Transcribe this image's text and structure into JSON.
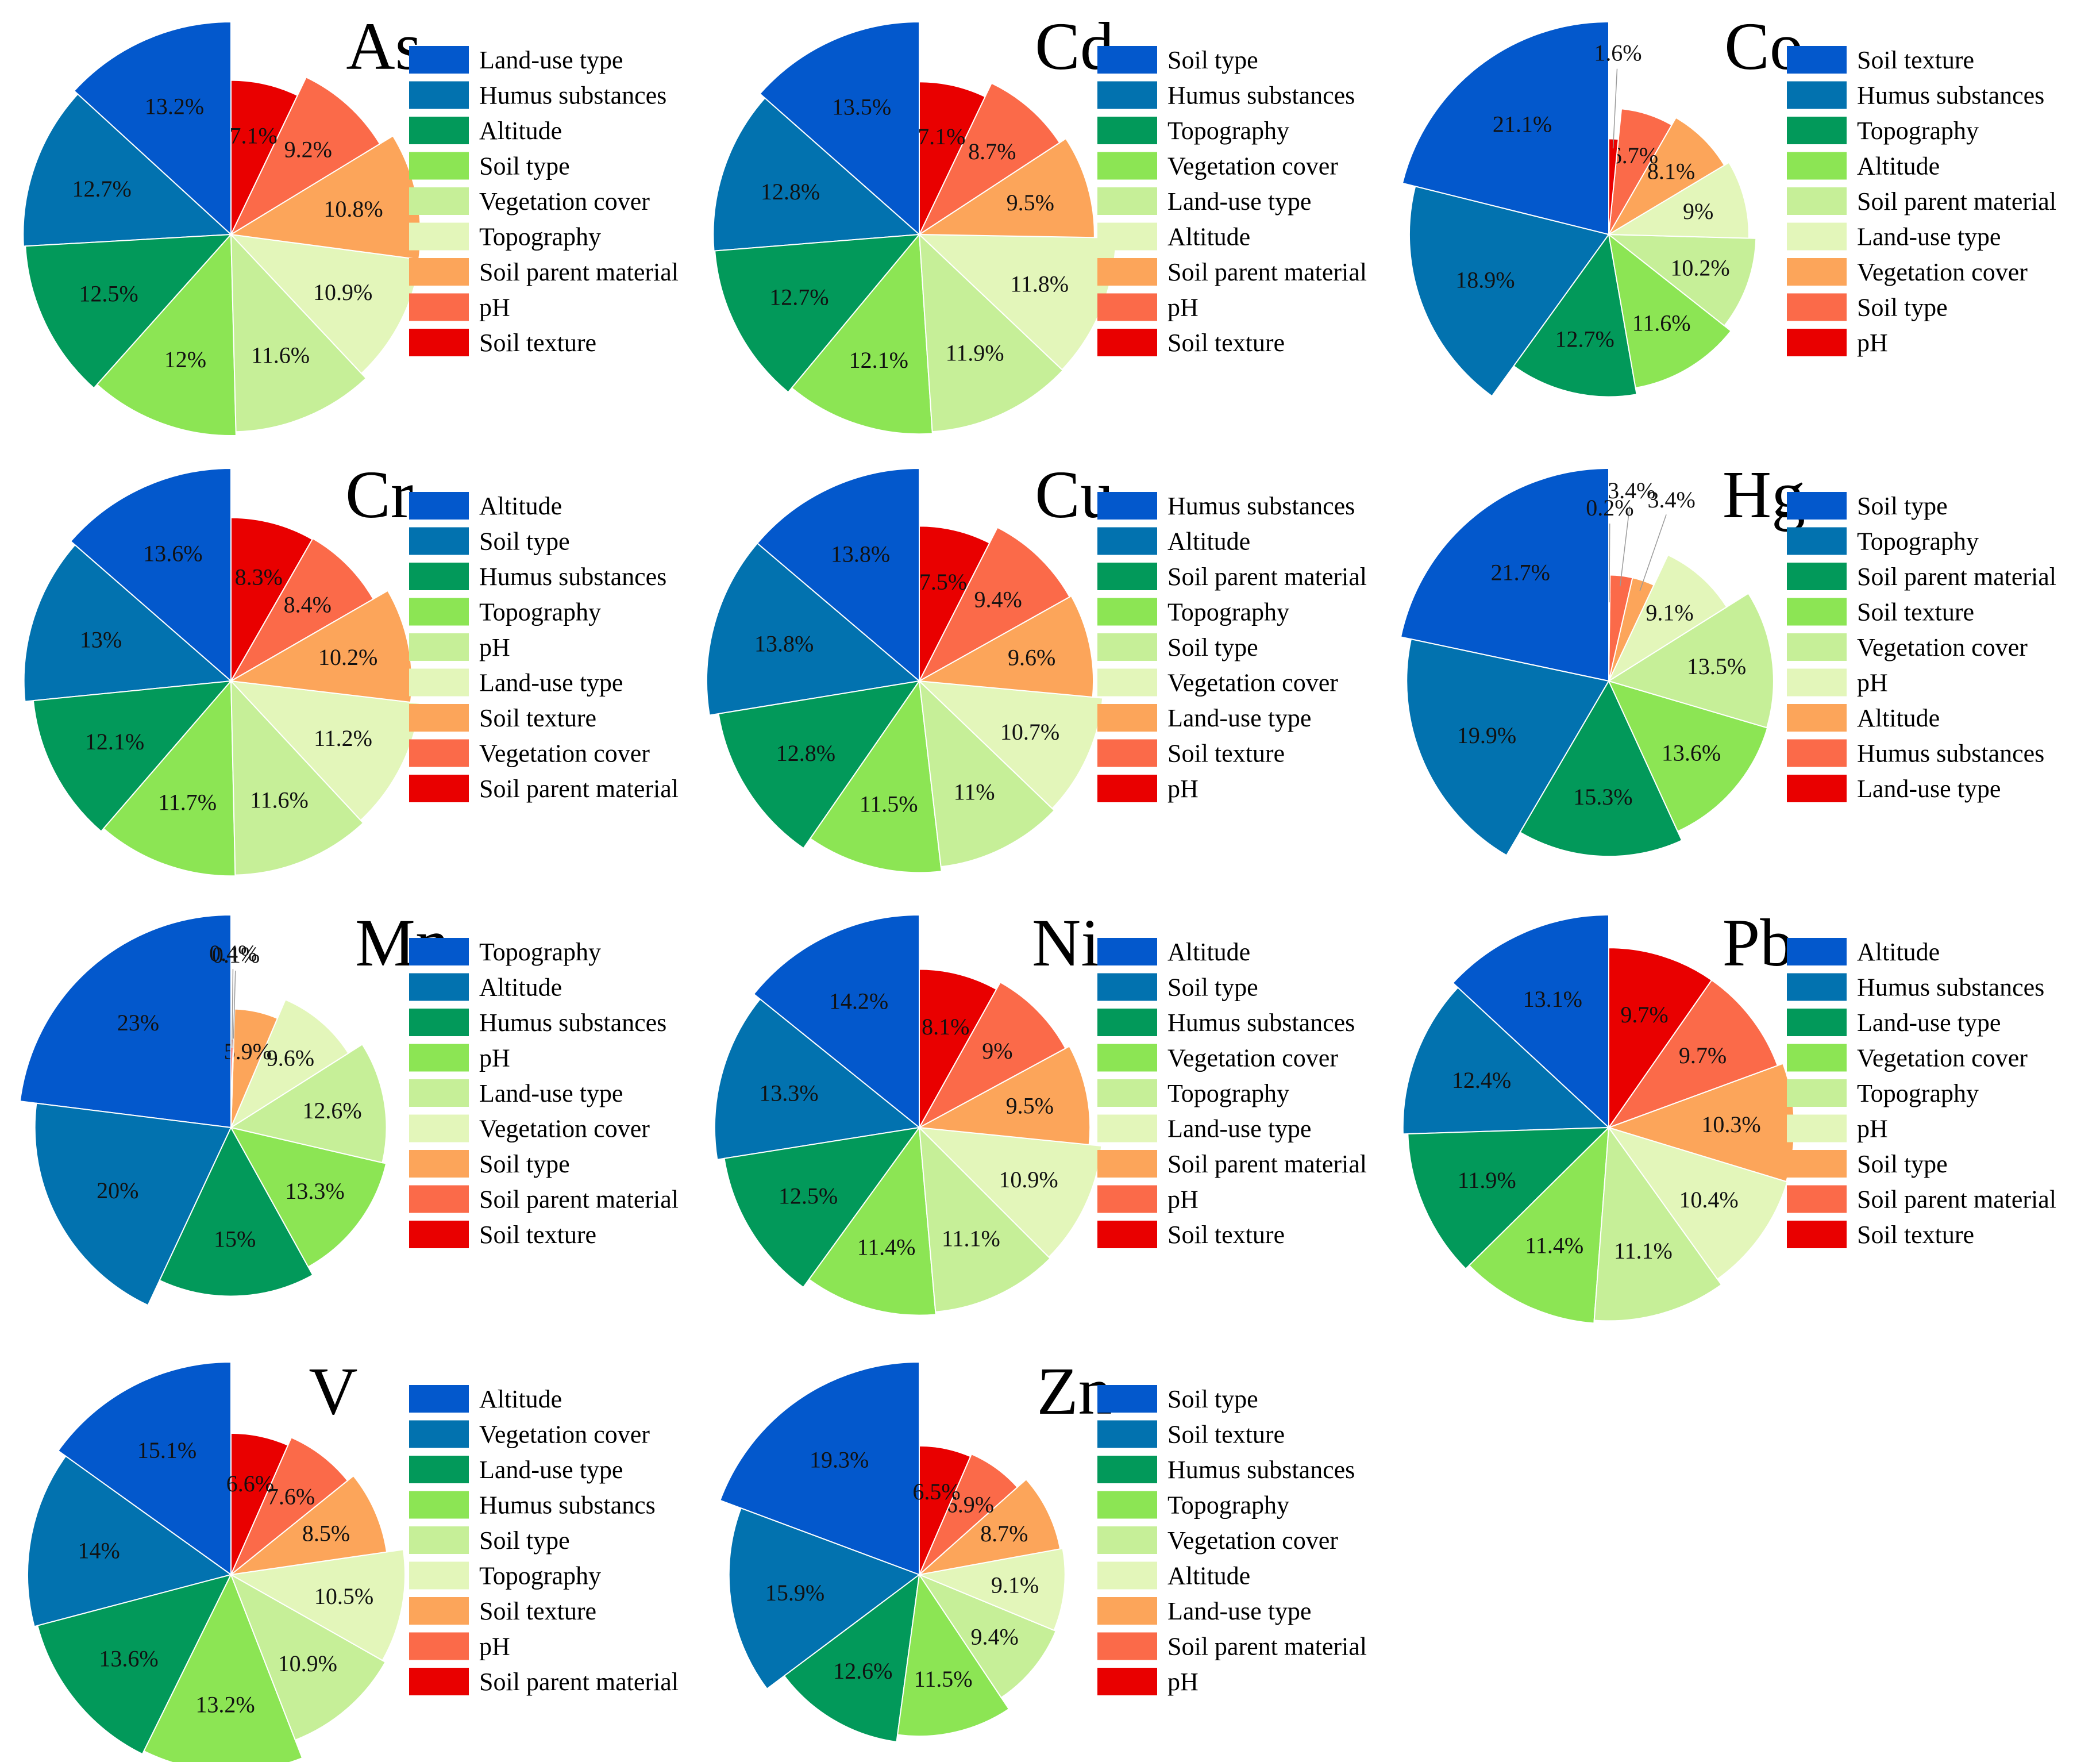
{
  "colors": [
    "#0358CC",
    "#0272AF",
    "#02995A",
    "#8CE554",
    "#C6EF98",
    "#E3F6BA",
    "#FCA55A",
    "#FB6A49",
    "#E90000"
  ],
  "chart_data": [
    {
      "type": "pie",
      "title": "As",
      "categories": [
        "Land-use type",
        "Humus substances",
        "Altitude",
        "Soil type",
        "Vegetation cover",
        "Topography",
        "Soil parent material",
        "pH",
        "Soil texture"
      ],
      "values": [
        13.2,
        12.7,
        12.5,
        12,
        11.6,
        10.9,
        10.8,
        9.2,
        7.1
      ],
      "value_labels": [
        "13.2%",
        "12.7%",
        "12.5%",
        "12%",
        "11.6%",
        "10.9%",
        "10.8%",
        "9.2%",
        "7.1%"
      ]
    },
    {
      "type": "pie",
      "title": "Cd",
      "categories": [
        "Soil type",
        "Humus substances",
        "Topography",
        "Vegetation cover",
        "Land-use type",
        "Altitude",
        "Soil parent material",
        "pH",
        "Soil texture"
      ],
      "values": [
        13.5,
        12.8,
        12.7,
        12.1,
        11.9,
        11.8,
        9.5,
        8.7,
        7.1
      ],
      "value_labels": [
        "13.5%",
        "12.8%",
        "12.7%",
        "12.1%",
        "11.9%",
        "11.8%",
        "9.5%",
        "8.7%",
        "7.1%"
      ]
    },
    {
      "type": "pie",
      "title": "Co",
      "categories": [
        "Soil texture",
        "Humus substances",
        "Topography",
        "Altitude",
        "Soil parent material",
        "Land-use type",
        "Vegetation cover",
        "Soil type",
        "pH"
      ],
      "values": [
        21.1,
        18.9,
        12.7,
        11.6,
        10.2,
        9,
        8.1,
        6.7,
        1.6
      ],
      "value_labels": [
        "21.1%",
        "18.9%",
        "12.7%",
        "11.6%",
        "10.2%",
        "9%",
        "8.1%",
        "6.7%",
        "1.6%"
      ]
    },
    {
      "type": "pie",
      "title": "Cr",
      "categories": [
        "Altitude",
        "Soil type",
        "Humus substances",
        "Topography",
        "pH",
        "Land-use type",
        "Soil texture",
        "Vegetation cover",
        "Soil parent material"
      ],
      "values": [
        13.6,
        13,
        12.1,
        11.7,
        11.6,
        11.2,
        10.2,
        8.4,
        8.3
      ],
      "value_labels": [
        "13.6%",
        "13%",
        "12.1%",
        "11.7%",
        "11.6%",
        "11.2%",
        "10.2%",
        "8.4%",
        "8.3%"
      ]
    },
    {
      "type": "pie",
      "title": "Cu",
      "categories": [
        "Humus substances",
        "Altitude",
        "Soil parent material",
        "Topography",
        "Soil type",
        "Vegetation cover",
        "Land-use type",
        "Soil texture",
        "pH"
      ],
      "values": [
        13.8,
        13.8,
        12.8,
        11.5,
        11,
        10.7,
        9.6,
        9.4,
        7.5
      ],
      "value_labels": [
        "13.8%",
        "13.8%",
        "12.8%",
        "11.5%",
        "11%",
        "10.7%",
        "9.6%",
        "9.4%",
        "7.5%"
      ]
    },
    {
      "type": "pie",
      "title": "Hg",
      "categories": [
        "Soil type",
        "Topography",
        "Soil parent material",
        "Soil texture",
        "Vegetation cover",
        "pH",
        "Altitude",
        "Humus substances",
        "Land-use type"
      ],
      "values": [
        21.7,
        19.9,
        15.3,
        13.6,
        13.5,
        9.1,
        3.4,
        3.4,
        0.2
      ],
      "value_labels": [
        "21.7%",
        "19.9%",
        "15.3%",
        "13.6%",
        "13.5%",
        "9.1%",
        "3.4%",
        "3.4%",
        "0.2%"
      ]
    },
    {
      "type": "pie",
      "title": "Mn",
      "categories": [
        "Topography",
        "Altitude",
        "Humus substances",
        "pH",
        "Land-use type",
        "Vegetation cover",
        "Soil type",
        "Soil parent material",
        "Soil texture"
      ],
      "values": [
        23,
        20,
        15,
        13.3,
        12.6,
        9.6,
        5.9,
        0.1,
        0.4
      ],
      "value_labels": [
        "23%",
        "20%",
        "15%",
        "13.3%",
        "12.6%",
        "9.6%",
        "5.9%",
        "0.1%",
        "0.4%"
      ]
    },
    {
      "type": "pie",
      "title": "Ni",
      "categories": [
        "Altitude",
        "Soil type",
        "Humus substances",
        "Vegetation cover",
        "Topography",
        "Land-use type",
        "Soil parent material",
        "pH",
        "Soil texture"
      ],
      "values": [
        14.2,
        13.3,
        12.5,
        11.4,
        11.1,
        10.9,
        9.5,
        9,
        8.1
      ],
      "value_labels": [
        "14.2%",
        "13.3%",
        "12.5%",
        "11.4%",
        "11.1%",
        "10.9%",
        "9.5%",
        "9%",
        "8.1%"
      ]
    },
    {
      "type": "pie",
      "title": "Pb",
      "categories": [
        "Altitude",
        "Humus substances",
        "Land-use type",
        "Vegetation cover",
        "Topography",
        "pH",
        "Soil type",
        "Soil parent material",
        "Soil texture"
      ],
      "values": [
        13.1,
        12.4,
        11.9,
        11.4,
        11.1,
        10.4,
        10.3,
        9.7,
        9.7
      ],
      "value_labels": [
        "13.1%",
        "12.4%",
        "11.9%",
        "11.4%",
        "11.1%",
        "10.4%",
        "10.3%",
        "9.7%",
        "9.7%"
      ]
    },
    {
      "type": "pie",
      "title": "V",
      "categories": [
        "Altitude",
        "Vegetation cover",
        "Land-use type",
        "Humus substancs",
        "Soil type",
        "Topography",
        "Soil texture",
        "pH",
        "Soil parent material"
      ],
      "values": [
        15.1,
        14,
        13.6,
        13.2,
        10.9,
        10.5,
        8.5,
        7.6,
        6.6
      ],
      "value_labels": [
        "15.1%",
        "14%",
        "13.6%",
        "13.2%",
        "10.9%",
        "10.5%",
        "8.5%",
        "7.6%",
        "6.6%"
      ]
    },
    {
      "type": "pie",
      "title": "Zn",
      "categories": [
        "Soil type",
        "Soil texture",
        "Humus substances",
        "Topography",
        "Vegetation cover",
        "Altitude",
        "Land-use type",
        "Soil parent material",
        "pH"
      ],
      "values": [
        19.3,
        15.9,
        12.6,
        11.5,
        9.4,
        9.1,
        8.7,
        6.9,
        6.5
      ],
      "value_labels": [
        "19.3%",
        "15.9%",
        "12.6%",
        "11.5%",
        "9.4%",
        "9.1%",
        "8.7%",
        "6.9%",
        "6.5%"
      ]
    }
  ]
}
